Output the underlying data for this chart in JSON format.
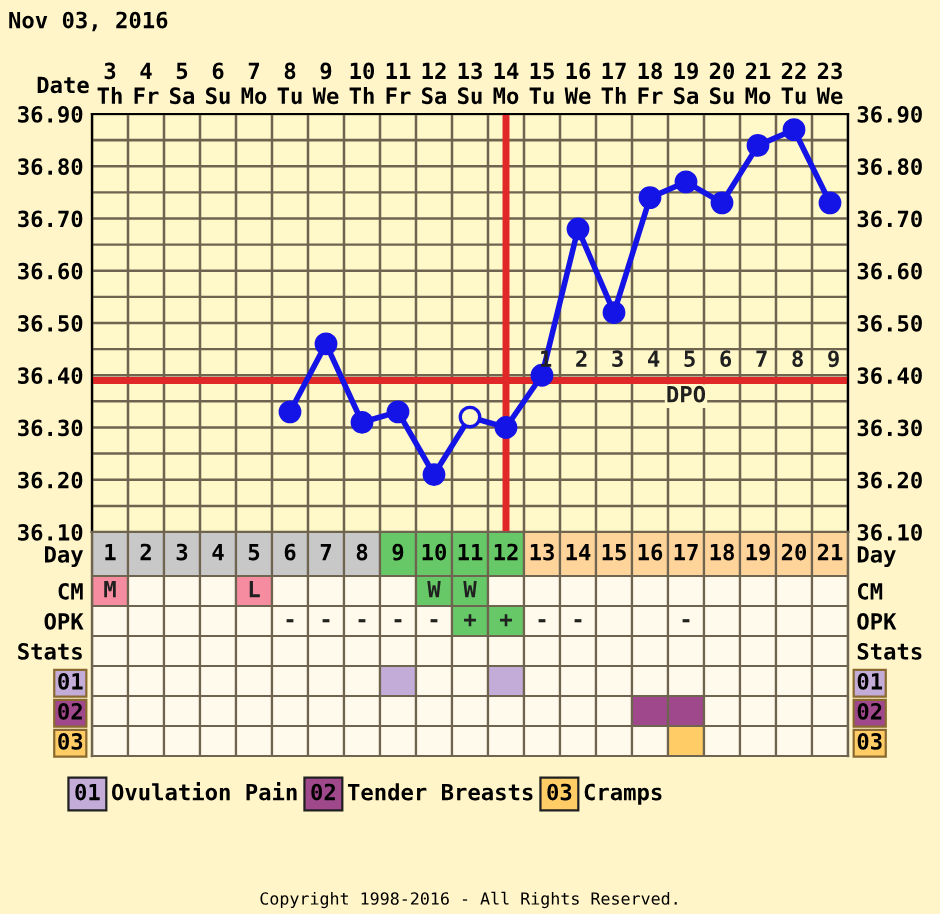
{
  "chart_data": [
    {
      "type": "line",
      "title": "Nov 03, 2016",
      "xlabel": "Date",
      "categories": [
        "3\nTh",
        "4\nFr",
        "5\nSa",
        "6\nSu",
        "7\nMo",
        "8\nTu",
        "9\nWe",
        "10\nTh",
        "11\nFr",
        "12\nSa",
        "13\nSu",
        "14\nMo",
        "15\nTu",
        "16\nWe",
        "17\nTh",
        "18\nFr",
        "19\nSa",
        "20\nSu",
        "21\nMo",
        "22\nTu",
        "23\nWe"
      ],
      "series": [
        {
          "color": "#1414e6",
          "values": [
            null,
            null,
            null,
            null,
            null,
            36.33,
            36.46,
            36.31,
            36.33,
            36.21,
            36.32,
            36.3,
            36.4,
            36.68,
            36.52,
            36.74,
            36.77,
            36.73,
            36.84,
            36.87,
            36.73
          ],
          "colors": [
            null,
            null,
            null,
            null,
            null,
            "#1414e6",
            "#1414e6",
            "#1414e6",
            "#1414e6",
            "#1414e6",
            "#fff8c8",
            "#1414e6",
            "#1414e6",
            "#1414e6",
            "#1414e6",
            "#1414e6",
            "#1414e6",
            "#1414e6",
            "#1414e6",
            "#1414e6",
            "#1414e6"
          ]
        }
      ],
      "ylim": [
        36.1,
        36.9
      ],
      "yticks": [
        {
          "value": 36.1,
          "label": "36.10"
        },
        {
          "value": 36.2,
          "label": "36.20"
        },
        {
          "value": 36.3,
          "label": "36.30"
        },
        {
          "value": 36.4,
          "label": "36.40"
        },
        {
          "value": 36.5,
          "label": "36.50"
        },
        {
          "value": 36.6,
          "label": "36.60"
        },
        {
          "value": 36.7,
          "label": "36.70"
        },
        {
          "value": 36.8,
          "label": "36.80"
        },
        {
          "value": 36.9,
          "label": "36.90"
        }
      ],
      "y2lim": [
        36.1,
        36.9
      ],
      "y2ticks": [
        {
          "value": 36.1,
          "label": "36.10"
        },
        {
          "value": 36.2,
          "label": "36.20"
        },
        {
          "value": 36.3,
          "label": "36.30"
        },
        {
          "value": 36.4,
          "label": "36.40"
        },
        {
          "value": 36.5,
          "label": "36.50"
        },
        {
          "value": 36.6,
          "label": "36.60"
        },
        {
          "value": 36.7,
          "label": "36.70"
        },
        {
          "value": 36.8,
          "label": "36.80"
        },
        {
          "value": 36.9,
          "label": "36.90"
        }
      ],
      "grid": true,
      "marker": "circle",
      "line_style": "solid",
      "ref_lines": [
        {
          "axis": "y",
          "value": 36.39,
          "color": "#e02828"
        },
        {
          "axis": "x",
          "value": "14\nMo",
          "color": "#e02828"
        }
      ],
      "annotations": [
        "1",
        "2",
        "3",
        "4",
        "5",
        "6",
        "7",
        "8",
        "9",
        "DPO"
      ]
    },
    {
      "type": "heatmap",
      "categories": [
        "1",
        "2",
        "3",
        "4",
        "5",
        "6",
        "7",
        "8",
        "9",
        "10",
        "11",
        "12",
        "13",
        "14",
        "15",
        "16",
        "17",
        "18",
        "19",
        "20",
        "21"
      ],
      "y_categories": [
        "Day",
        "CM",
        "OPK",
        "Stats",
        "01",
        "02",
        "03"
      ],
      "y2_categories": [
        "Day",
        "CM",
        "OPK",
        "Stats",
        "01",
        "02",
        "03"
      ],
      "cells": [
        [
          null,
          null,
          null,
          null,
          null,
          null,
          null,
          null,
          null,
          null,
          null,
          null,
          null,
          null,
          null,
          null,
          null,
          null,
          null,
          null,
          null
        ],
        [
          "M",
          null,
          null,
          null,
          "L",
          null,
          null,
          null,
          null,
          "W",
          "W",
          null,
          null,
          null,
          null,
          null,
          null,
          null,
          null,
          null,
          null
        ],
        [
          null,
          null,
          null,
          null,
          null,
          "-",
          "-",
          "-",
          "-",
          "-",
          "+",
          "+",
          "-",
          "-",
          null,
          null,
          "-",
          null,
          null,
          null,
          null
        ],
        [
          null,
          null,
          null,
          null,
          null,
          null,
          null,
          null,
          null,
          null,
          null,
          null,
          null,
          null,
          null,
          null,
          null,
          null,
          null,
          null,
          null
        ],
        [
          null,
          null,
          null,
          null,
          null,
          null,
          null,
          null,
          null,
          null,
          null,
          null,
          null,
          null,
          null,
          null,
          null,
          null,
          null,
          null,
          null
        ],
        [
          null,
          null,
          null,
          null,
          null,
          null,
          null,
          null,
          null,
          null,
          null,
          null,
          null,
          null,
          null,
          null,
          null,
          null,
          null,
          null,
          null
        ],
        [
          null,
          null,
          null,
          null,
          null,
          null,
          null,
          null,
          null,
          null,
          null,
          null,
          null,
          null,
          null,
          null,
          null,
          null,
          null,
          null,
          null
        ]
      ],
      "colors": [
        [
          "#c8c8c8",
          "#c8c8c8",
          "#c8c8c8",
          "#c8c8c8",
          "#c8c8c8",
          "#c8c8c8",
          "#c8c8c8",
          "#c8c8c8",
          "#66c866",
          "#66c866",
          "#66c866",
          "#66c866",
          "#ffd49a",
          "#ffd49a",
          "#ffd49a",
          "#ffd49a",
          "#ffd49a",
          "#ffd49a",
          "#ffd49a",
          "#ffd49a",
          "#ffd49a"
        ],
        [
          "#f58ca0",
          null,
          null,
          null,
          "#f58ca0",
          null,
          null,
          null,
          null,
          "#66c866",
          "#66c866",
          null,
          null,
          null,
          null,
          null,
          null,
          null,
          null,
          null,
          null
        ],
        [
          null,
          null,
          null,
          null,
          null,
          null,
          null,
          null,
          null,
          null,
          "#66c866",
          "#66c866",
          null,
          null,
          null,
          null,
          null,
          null,
          null,
          null,
          null
        ],
        [
          null,
          null,
          null,
          null,
          null,
          null,
          null,
          null,
          null,
          null,
          null,
          null,
          null,
          null,
          null,
          null,
          null,
          null,
          null,
          null,
          null
        ],
        [
          null,
          null,
          null,
          null,
          null,
          null,
          null,
          null,
          "#c4acd8",
          null,
          null,
          "#c4acd8",
          null,
          null,
          null,
          null,
          null,
          null,
          null,
          null,
          null
        ],
        [
          null,
          null,
          null,
          null,
          null,
          null,
          null,
          null,
          null,
          null,
          null,
          null,
          null,
          null,
          null,
          "#a0488c",
          "#a0488c",
          null,
          null,
          null,
          null
        ],
        [
          null,
          null,
          null,
          null,
          null,
          null,
          null,
          null,
          null,
          null,
          null,
          null,
          null,
          null,
          null,
          null,
          "#ffcc66",
          null,
          null,
          null,
          null
        ]
      ],
      "annotations": [
        "Ovulation Pain",
        "Tender Breasts",
        "Cramps",
        "Copyright 1998-2016 - All Rights Reserved."
      ]
    }
  ]
}
